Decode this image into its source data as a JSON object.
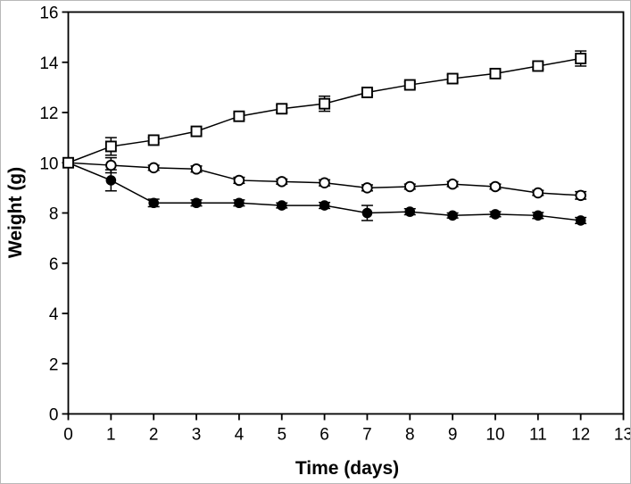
{
  "figure": {
    "background": "#ffffff",
    "frame_border_color": "#b9b9b9",
    "ink_color": "#000000"
  },
  "chart_data": {
    "type": "line",
    "title": "",
    "xlabel": "Time (days)",
    "ylabel": "Weight (g)",
    "xlim": [
      0,
      13
    ],
    "ylim": [
      0,
      16
    ],
    "xticks": [
      0,
      1,
      2,
      3,
      4,
      5,
      6,
      7,
      8,
      9,
      10,
      11,
      12,
      13
    ],
    "yticks": [
      0,
      2,
      4,
      6,
      8,
      10,
      12,
      14,
      16
    ],
    "grid": false,
    "legend": "none",
    "error_bars": true,
    "x": [
      0,
      1,
      2,
      3,
      4,
      5,
      6,
      7,
      8,
      9,
      10,
      11,
      12
    ],
    "series": [
      {
        "name": "open-square-series",
        "marker": "open-square",
        "values": [
          10.0,
          10.65,
          10.9,
          11.25,
          11.85,
          12.15,
          12.35,
          12.8,
          13.1,
          13.35,
          13.55,
          13.85,
          14.15
        ],
        "errors": [
          0,
          0.35,
          0.1,
          0.1,
          0.12,
          0.15,
          0.3,
          0.12,
          0.12,
          0.15,
          0.12,
          0.12,
          0.3
        ]
      },
      {
        "name": "open-circle-series",
        "marker": "open-circle",
        "values": [
          10.0,
          9.9,
          9.8,
          9.75,
          9.3,
          9.25,
          9.2,
          9.0,
          9.05,
          9.15,
          9.05,
          8.8,
          8.7
        ],
        "errors": [
          0,
          0.3,
          0.1,
          0.12,
          0.12,
          0.1,
          0.12,
          0.12,
          0.1,
          0.1,
          0.1,
          0.1,
          0.15
        ]
      },
      {
        "name": "filled-circle-series",
        "marker": "filled-circle",
        "values": [
          10.0,
          9.3,
          8.4,
          8.4,
          8.4,
          8.3,
          8.3,
          8.0,
          8.05,
          7.9,
          7.95,
          7.9,
          7.7
        ],
        "errors": [
          0,
          0.42,
          0.15,
          0.12,
          0.12,
          0.1,
          0.12,
          0.3,
          0.12,
          0.1,
          0.1,
          0.12,
          0.12
        ]
      }
    ]
  }
}
